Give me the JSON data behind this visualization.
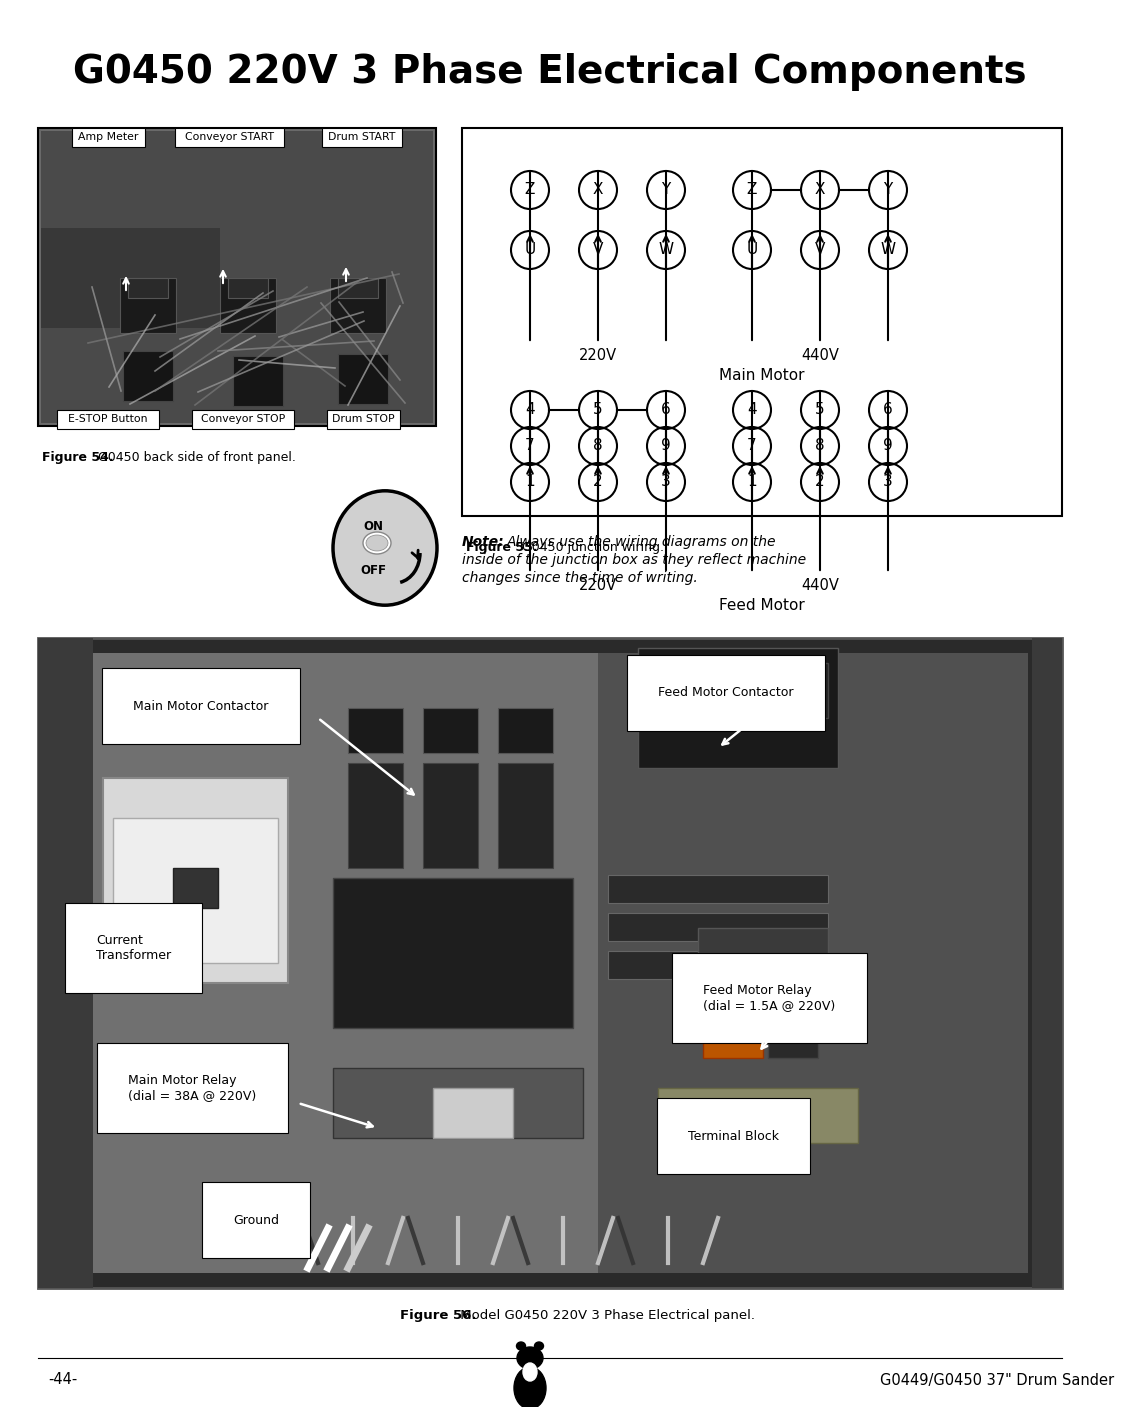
{
  "title": "G0450 220V 3 Phase Electrical Components",
  "title_fontsize": 28,
  "title_fontweight": "bold",
  "page_bg": "#ffffff",
  "fig54_caption_bold": "Figure 54.",
  "fig54_caption_rest": " G0450 back side of front panel.",
  "fig55_caption_bold": "Figure 55.",
  "fig55_caption_rest": " G0450 junction wiring.",
  "fig56_caption_bold": "Figure 56.",
  "fig56_caption_rest": " Model G0450 220V 3 Phase Electrical panel.",
  "page_number": "-44-",
  "footer_right": "G0449/G0450 37\" Drum Sander",
  "note_bold": "Note:",
  "note_text": " Always use the wiring diagrams on the inside of the junction box as they reflect machine changes since the time of writing.",
  "fig54_top_labels": [
    [
      "Amp Meter",
      35
    ],
    [
      "Conveyor START",
      138
    ],
    [
      "Drum START",
      285
    ]
  ],
  "fig54_bot_labels": [
    [
      "E-STOP Button",
      20
    ],
    [
      "Conveyor STOP",
      155
    ],
    [
      "Drum STOP",
      290
    ]
  ],
  "mm_220_row1": [
    "Z",
    "X",
    "Y"
  ],
  "mm_440_row1": [
    "Z",
    "X",
    "Y"
  ],
  "mm_220_row2": [
    "U",
    "V",
    "W"
  ],
  "mm_440_row2": [
    "U",
    "V",
    "W"
  ],
  "fm_220_row1": [
    "4",
    "5",
    "6"
  ],
  "fm_440_row1": [
    "4",
    "5",
    "6"
  ],
  "fm_220_row2": [
    "7",
    "8",
    "9"
  ],
  "fm_440_row2": [
    "7",
    "8",
    "9"
  ],
  "fm_220_row3": [
    "1",
    "2",
    "3"
  ],
  "fm_440_row3": [
    "1",
    "2",
    "3"
  ]
}
